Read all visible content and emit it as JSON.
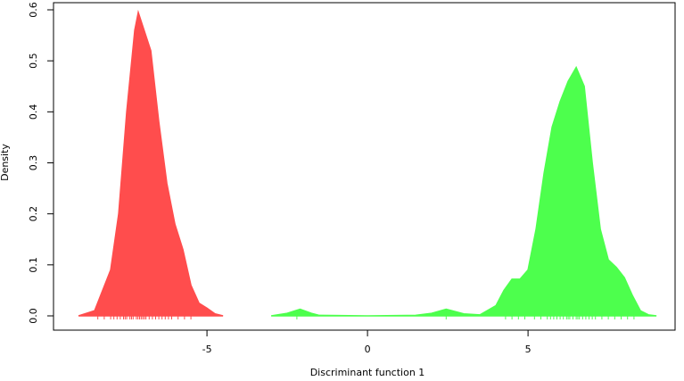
{
  "chart_data": {
    "type": "density",
    "xlabel": "Discriminant function 1",
    "ylabel": "Density",
    "xlim": [
      -9.78,
      9.58
    ],
    "ylim": [
      -0.028,
      0.614
    ],
    "xticks": [
      -5,
      0,
      5
    ],
    "yticks": [
      {
        "value": 0,
        "label": "0.0"
      },
      0.1,
      0.2,
      0.3,
      0.4,
      0.5,
      0.6
    ],
    "series": [
      {
        "color": "#ff4d4d",
        "x": [
          -9,
          -8.5,
          -8,
          -7.75,
          -7.5,
          -7.25,
          -7.14,
          -6.75,
          -6.5,
          -6.25,
          -6,
          -5.75,
          -5.5,
          -5.25,
          -5,
          -4.75,
          -4.5
        ],
        "values": [
          0,
          0.01,
          0.09,
          0.2,
          0.4,
          0.56,
          0.595,
          0.52,
          0.38,
          0.26,
          0.18,
          0.13,
          0.06,
          0.025,
          0.015,
          0.004,
          0
        ],
        "rug": [
          -8.4,
          -8.2,
          -8.0,
          -7.9,
          -7.8,
          -7.7,
          -7.6,
          -7.55,
          -7.5,
          -7.4,
          -7.35,
          -7.3,
          -7.2,
          -7.15,
          -7.1,
          -7.05,
          -7.0,
          -6.95,
          -6.9,
          -6.8,
          -6.7,
          -6.6,
          -6.5,
          -6.4,
          -6.3,
          -6.2,
          -6.1,
          -5.9,
          -5.7,
          -5.5
        ]
      },
      {
        "color": "#4dff4d",
        "x": [
          -3,
          -2.5,
          -2.1,
          -1.75,
          -1.5,
          0,
          1.5,
          2,
          2.45,
          3,
          3.5,
          4,
          4.25,
          4.5,
          4.75,
          5,
          5.25,
          5.5,
          5.75,
          6,
          6.25,
          6.5,
          6.75,
          7,
          7.25,
          7.5,
          7.75,
          8,
          8.25,
          8.5,
          8.75,
          9
        ],
        "values": [
          0,
          0.005,
          0.013,
          0.005,
          0.001,
          0,
          0.001,
          0.005,
          0.013,
          0.004,
          0.002,
          0.02,
          0.05,
          0.072,
          0.072,
          0.09,
          0.17,
          0.28,
          0.37,
          0.42,
          0.46,
          0.487,
          0.45,
          0.3,
          0.17,
          0.11,
          0.095,
          0.075,
          0.04,
          0.01,
          0.002,
          0
        ],
        "rug": [
          -2.2,
          2.45,
          4.3,
          4.5,
          4.7,
          4.9,
          5.2,
          5.4,
          5.6,
          5.7,
          5.8,
          5.9,
          6.0,
          6.1,
          6.2,
          6.25,
          6.3,
          6.4,
          6.5,
          6.55,
          6.6,
          6.7,
          6.8,
          6.9,
          7.0,
          7.1,
          7.3,
          7.5,
          7.7,
          7.9,
          8.1,
          8.3
        ]
      }
    ]
  }
}
